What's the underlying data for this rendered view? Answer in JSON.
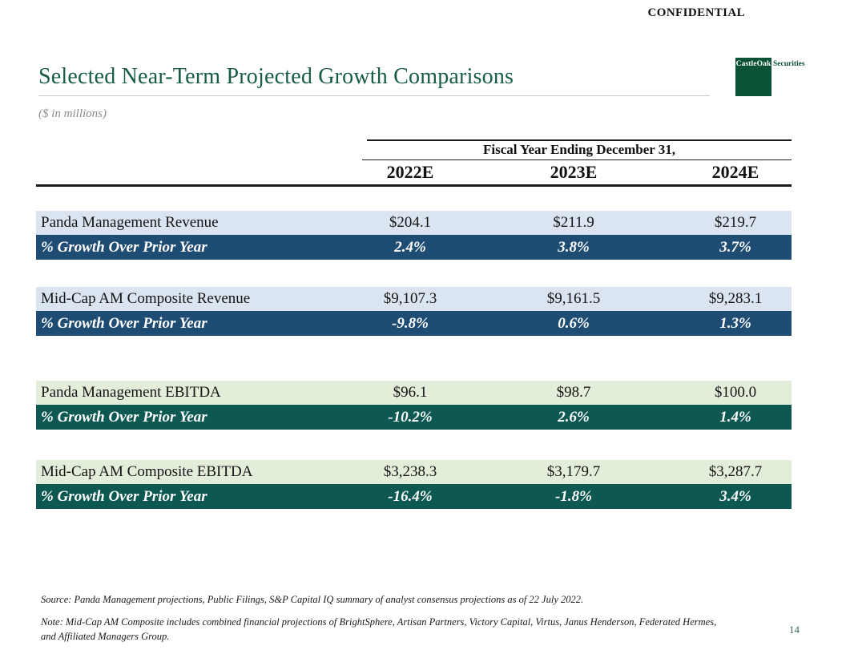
{
  "page": {
    "confidential": "CONFIDENTIAL",
    "title": "Selected Near-Term Projected Growth Comparisons",
    "subtitle": "($ in millions)",
    "page_number": "14"
  },
  "logo": {
    "mark_text": "CastleOak",
    "side_text": "Securities"
  },
  "table": {
    "fiscal_header": "Fiscal Year Ending December 31,",
    "years": [
      "2022E",
      "2023E",
      "2024E"
    ],
    "groups": [
      {
        "metric_row": {
          "label": "Panda Management Revenue",
          "values": [
            "$204.1",
            "$211.9",
            "$219.7"
          ]
        },
        "growth_row": {
          "label": "% Growth Over Prior Year",
          "values": [
            "2.4%",
            "3.8%",
            "3.7%"
          ]
        }
      },
      {
        "metric_row": {
          "label": "Mid-Cap AM Composite Revenue",
          "values": [
            "$9,107.3",
            "$9,161.5",
            "$9,283.1"
          ]
        },
        "growth_row": {
          "label": "% Growth Over Prior Year",
          "values": [
            "-9.8%",
            "0.6%",
            "1.3%"
          ]
        }
      },
      {
        "metric_row": {
          "label": "Panda Management EBITDA",
          "values": [
            "$96.1",
            "$98.7",
            "$100.0"
          ]
        },
        "growth_row": {
          "label": "% Growth Over Prior Year",
          "values": [
            "-10.2%",
            "2.6%",
            "1.4%"
          ]
        }
      },
      {
        "metric_row": {
          "label": "Mid-Cap AM Composite EBITDA",
          "values": [
            "$3,238.3",
            "$3,179.7",
            "$3,287.7"
          ]
        },
        "growth_row": {
          "label": "% Growth Over Prior Year",
          "values": [
            "-16.4%",
            "-1.8%",
            "3.4%"
          ]
        }
      }
    ]
  },
  "footnotes": {
    "source": "Source: Panda Management projections, Public Filings, S&P Capital IQ summary of analyst consensus projections as of 22 July 2022.",
    "note_line1": "Note: Mid-Cap AM Composite includes combined financial projections of BrightSphere, Artisan Partners, Victory Capital, Virtus, Janus Henderson, Federated Hermes,",
    "note_line2": "and Affiliated Managers Group."
  },
  "colors": {
    "title_green": "#175d46",
    "logo_green": "#0b5136",
    "revenue_band_light": "#dbe5f1",
    "revenue_band_dark": "#1f4c72",
    "ebitda_band_light": "#e3eeda",
    "ebitda_band_dark": "#0d5952",
    "rule_black": "#1a1a1a",
    "title_rule_gray": "#c9c9c9",
    "page_number_green": "#37695a"
  }
}
